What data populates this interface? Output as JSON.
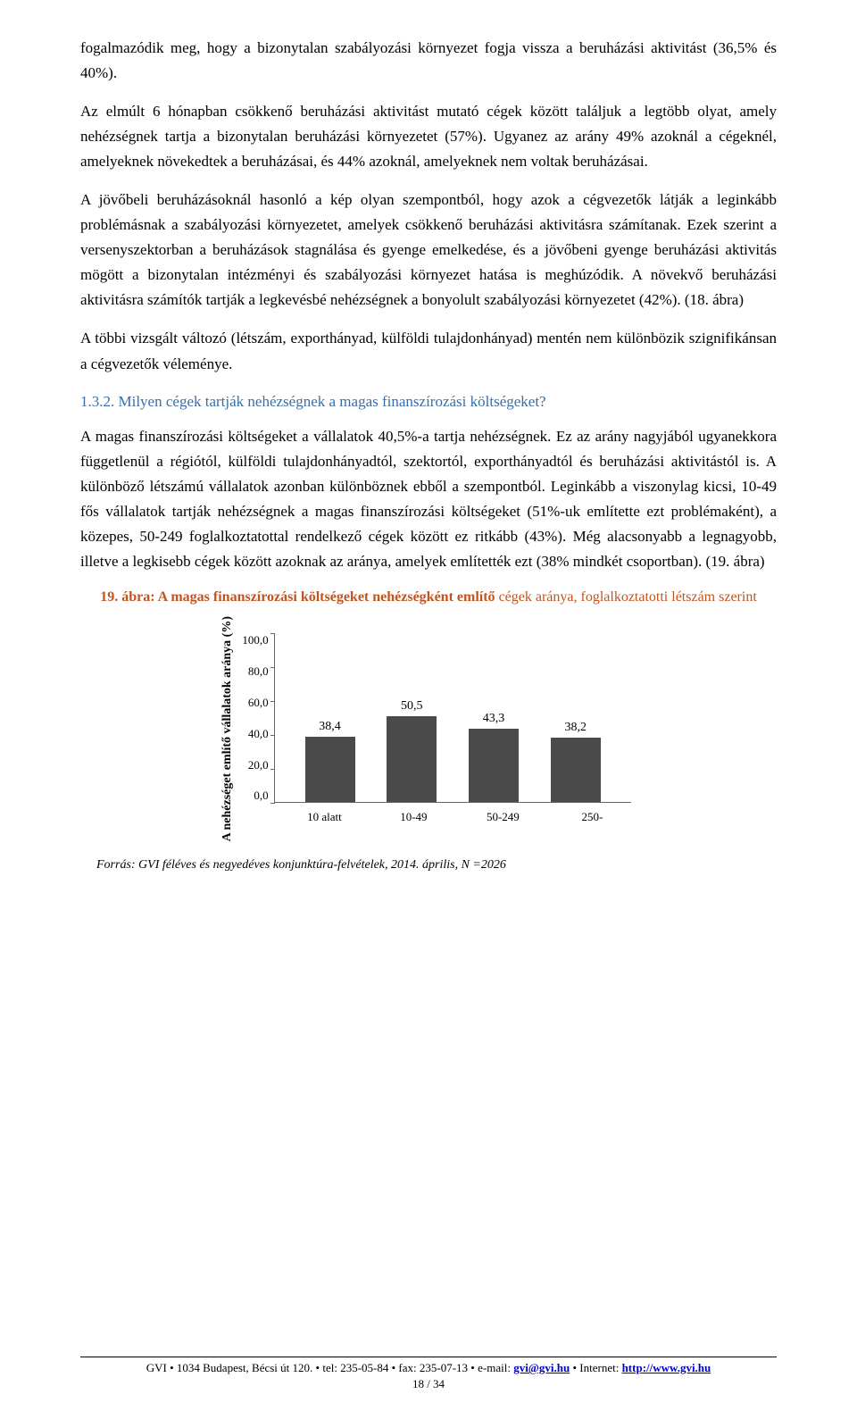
{
  "p1": "fogalmazódik meg, hogy a bizonytalan szabályozási környezet fogja vissza a beruházási aktivitást (36,5% és 40%).",
  "p2": "Az elmúlt 6 hónapban csökkenő beruházási aktivitást mutató cégek között találjuk a legtöbb olyat, amely nehézségnek tartja a bizonytalan beruházási környezetet (57%). Ugyanez az arány 49% azoknál a cégeknél, amelyeknek növekedtek a beruházásai, és 44% azoknál, amelyeknek nem voltak beruházásai.",
  "p3": "A jövőbeli beruházásoknál hasonló a kép olyan szempontból, hogy azok a cégvezetők látják a leginkább problémásnak a szabályozási környezetet, amelyek csökkenő beruházási aktivitásra számítanak. Ezek szerint a versenyszektorban a beruházások stagnálása és gyenge emelkedése, és a jövőbeni gyenge beruházási aktivitás mögött a bizonytalan intézményi és szabályozási környezet hatása is meghúzódik. A növekvő beruházási aktivitásra számítók tartják a legkevésbé nehézségnek a bonyolult szabályozási környezetet (42%). (18. ábra)",
  "p4": "A többi vizsgált változó (létszám, exporthányad, külföldi tulajdonhányad) mentén nem különbözik szignifikánsan a cégvezetők véleménye.",
  "heading": "1.3.2. Milyen cégek tartják nehézségnek a magas finanszírozási költségeket?",
  "p5": "A magas finanszírozási költségeket a vállalatok 40,5%-a tartja nehézségnek. Ez az arány nagyjából ugyanekkora függetlenül a régiótól, külföldi tulajdonhányadtól, szektortól, exporthányadtól és beruházási aktivitástól is. A különböző létszámú vállalatok azonban különböznek ebből a szempontból. Leginkább a viszonylag kicsi, 10-49 fős vállalatok tartják nehézségnek a magas finanszírozási költségeket (51%-uk említette ezt problémaként), a közepes, 50-249 foglalkoztatottal rendelkező cégek között ez ritkább (43%). Még alacsonyabb a legnagyobb, illetve a legkisebb cégek között azoknak az aránya, amelyek említették ezt (38% mindkét csoportban). (19. ábra)",
  "chart": {
    "title_prefix": "19. ábra: A magas finanszírozási költségeket nehézségként említő",
    "title_suffix": " cégek aránya, foglalkoztatotti létszám szerint",
    "y_label": "A nehézséget említő vállalatok aránya (%)",
    "ylim": [
      0,
      100
    ],
    "ytick_step": 20,
    "y_ticks": [
      "100,0",
      "80,0",
      "60,0",
      "40,0",
      "20,0",
      "0,0"
    ],
    "categories": [
      "10 alatt",
      "10-49",
      "50-249",
      "250-"
    ],
    "values": [
      38.4,
      50.5,
      43.3,
      38.2
    ],
    "value_labels": [
      "38,4",
      "50,5",
      "43,3",
      "38,2"
    ],
    "bar_color": "#4a4a4a",
    "background_color": "#ffffff"
  },
  "source": "Forrás: GVI féléves és negyedéves konjunktúra-felvételek, 2014. április, N =2026",
  "footer": {
    "line1_a": "GVI ",
    "bullet": " • ",
    "addr": "1034 Budapest, Bécsi út 120. ",
    "tel": "tel: 235-05-84 ",
    "fax": "fax: 235-07-13 ",
    "email_label": "e-mail: ",
    "email": "gvi@gvi.hu",
    "internet_label": "Internet: ",
    "url": "http://www.gvi.hu",
    "page": "18 / 34"
  }
}
